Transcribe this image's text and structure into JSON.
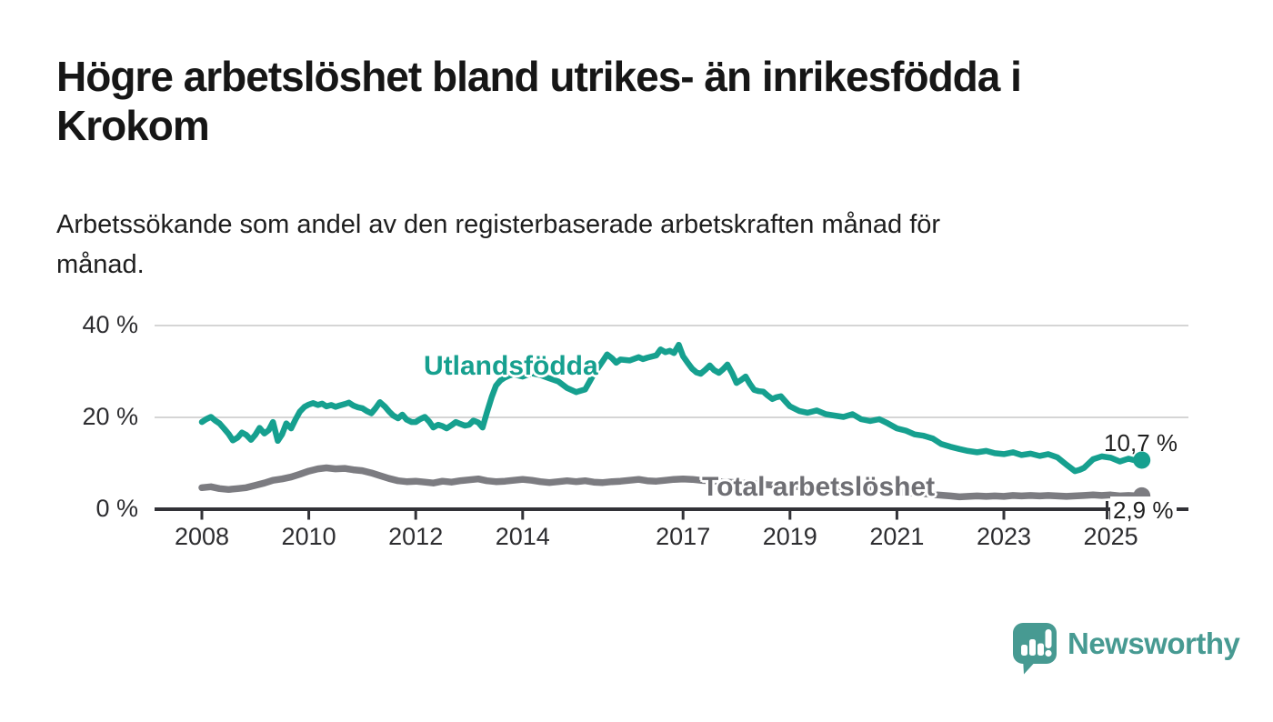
{
  "header": {
    "title": "Högre arbetslöshet bland utrikes- än inrikesfödda i\nKrokom",
    "subtitle": "Arbetssökande som andel av den registerbaserade arbetskraften månad för\nmånad."
  },
  "footer": {
    "brand": "Newsworthy",
    "logo_icon": "speech-bubble-bar-chart-icon",
    "brand_color": "#479a92"
  },
  "colors": {
    "background": "#ffffff",
    "title_text": "#161616",
    "axis": "#323237",
    "gridline": "#d5d5d5",
    "tick_label": "#2d2d30",
    "teal_series": "#16a08f",
    "gray_series": "#7c7c81",
    "gray_label": "#6f6f74"
  },
  "chart_data": {
    "type": "line",
    "title": "Högre arbetslöshet bland utrikes- än inrikesfödda i Krokom",
    "subtitle": "Arbetssökande som andel av den registerbaserade arbetskraften månad för månad.",
    "unit": "%",
    "grid": "horizontal",
    "legend_position": "inline-labels",
    "x_range": [
      2008,
      2025.58
    ],
    "ylim": [
      0,
      43
    ],
    "x_ticks": [
      2008,
      2010,
      2012,
      2014,
      2017,
      2019,
      2021,
      2023,
      2025
    ],
    "x_tick_labels": [
      "2008",
      "2010",
      "2012",
      "2014",
      "2017",
      "2019",
      "2021",
      "2023",
      "2025"
    ],
    "y_ticks": [
      0,
      20,
      40
    ],
    "y_tick_labels": [
      "0 %",
      "20 %",
      "40 %"
    ],
    "series": [
      {
        "name": "Utlandsfödda",
        "color": "#16a08f",
        "label_color": "#16a08f",
        "end_label": "10,7 %",
        "end_value": 10.7,
        "end_dot": true,
        "points": [
          [
            2008.0,
            19.0
          ],
          [
            2008.08,
            19.6
          ],
          [
            2008.17,
            20.1
          ],
          [
            2008.25,
            19.3
          ],
          [
            2008.33,
            18.7
          ],
          [
            2008.42,
            17.5
          ],
          [
            2008.5,
            16.4
          ],
          [
            2008.58,
            15.0
          ],
          [
            2008.67,
            15.6
          ],
          [
            2008.75,
            16.7
          ],
          [
            2008.83,
            16.2
          ],
          [
            2008.92,
            15.1
          ],
          [
            2009.0,
            16.2
          ],
          [
            2009.08,
            17.7
          ],
          [
            2009.17,
            16.5
          ],
          [
            2009.25,
            17.2
          ],
          [
            2009.33,
            19.0
          ],
          [
            2009.42,
            14.9
          ],
          [
            2009.5,
            16.3
          ],
          [
            2009.58,
            18.7
          ],
          [
            2009.67,
            17.6
          ],
          [
            2009.75,
            19.5
          ],
          [
            2009.83,
            21.2
          ],
          [
            2009.92,
            22.3
          ],
          [
            2010.0,
            22.8
          ],
          [
            2010.08,
            23.1
          ],
          [
            2010.17,
            22.7
          ],
          [
            2010.25,
            23.0
          ],
          [
            2010.33,
            22.4
          ],
          [
            2010.42,
            22.7
          ],
          [
            2010.5,
            22.3
          ],
          [
            2010.58,
            22.6
          ],
          [
            2010.67,
            22.9
          ],
          [
            2010.75,
            23.2
          ],
          [
            2010.83,
            22.6
          ],
          [
            2010.92,
            22.2
          ],
          [
            2011.0,
            22.0
          ],
          [
            2011.08,
            21.4
          ],
          [
            2011.17,
            20.9
          ],
          [
            2011.25,
            22.0
          ],
          [
            2011.33,
            23.3
          ],
          [
            2011.42,
            22.4
          ],
          [
            2011.5,
            21.3
          ],
          [
            2011.58,
            20.4
          ],
          [
            2011.67,
            19.8
          ],
          [
            2011.75,
            20.6
          ],
          [
            2011.83,
            19.5
          ],
          [
            2011.92,
            19.0
          ],
          [
            2012.0,
            19.0
          ],
          [
            2012.08,
            19.6
          ],
          [
            2012.17,
            20.1
          ],
          [
            2012.25,
            19.1
          ],
          [
            2012.33,
            17.8
          ],
          [
            2012.42,
            18.4
          ],
          [
            2012.5,
            18.1
          ],
          [
            2012.58,
            17.6
          ],
          [
            2012.67,
            18.3
          ],
          [
            2012.75,
            19.0
          ],
          [
            2012.83,
            18.6
          ],
          [
            2012.92,
            18.2
          ],
          [
            2013.0,
            18.4
          ],
          [
            2013.08,
            19.3
          ],
          [
            2013.17,
            18.9
          ],
          [
            2013.25,
            17.8
          ],
          [
            2013.33,
            21.0
          ],
          [
            2013.42,
            24.4
          ],
          [
            2013.5,
            26.9
          ],
          [
            2013.58,
            28.0
          ],
          [
            2013.67,
            28.7
          ],
          [
            2013.75,
            29.1
          ],
          [
            2013.83,
            29.4
          ],
          [
            2013.92,
            29.1
          ],
          [
            2014.0,
            28.9
          ],
          [
            2014.17,
            29.6
          ],
          [
            2014.33,
            29.2
          ],
          [
            2014.5,
            28.5
          ],
          [
            2014.67,
            27.8
          ],
          [
            2014.83,
            26.4
          ],
          [
            2015.0,
            25.5
          ],
          [
            2015.17,
            26.1
          ],
          [
            2015.33,
            29.4
          ],
          [
            2015.5,
            32.3
          ],
          [
            2015.58,
            33.7
          ],
          [
            2015.67,
            32.9
          ],
          [
            2015.75,
            31.9
          ],
          [
            2015.83,
            32.6
          ],
          [
            2016.0,
            32.4
          ],
          [
            2016.17,
            33.1
          ],
          [
            2016.25,
            32.7
          ],
          [
            2016.33,
            33.0
          ],
          [
            2016.5,
            33.5
          ],
          [
            2016.58,
            34.8
          ],
          [
            2016.67,
            34.2
          ],
          [
            2016.75,
            34.5
          ],
          [
            2016.83,
            34.0
          ],
          [
            2016.92,
            35.8
          ],
          [
            2017.0,
            33.3
          ],
          [
            2017.08,
            32.0
          ],
          [
            2017.17,
            30.6
          ],
          [
            2017.25,
            29.8
          ],
          [
            2017.33,
            29.5
          ],
          [
            2017.42,
            30.4
          ],
          [
            2017.5,
            31.3
          ],
          [
            2017.58,
            30.3
          ],
          [
            2017.67,
            29.7
          ],
          [
            2017.75,
            30.5
          ],
          [
            2017.83,
            31.5
          ],
          [
            2017.92,
            29.6
          ],
          [
            2018.0,
            27.5
          ],
          [
            2018.08,
            28.1
          ],
          [
            2018.17,
            28.9
          ],
          [
            2018.25,
            27.3
          ],
          [
            2018.33,
            26.0
          ],
          [
            2018.42,
            25.7
          ],
          [
            2018.5,
            25.6
          ],
          [
            2018.58,
            24.8
          ],
          [
            2018.67,
            24.0
          ],
          [
            2018.75,
            24.4
          ],
          [
            2018.83,
            24.6
          ],
          [
            2018.92,
            23.4
          ],
          [
            2019.0,
            22.4
          ],
          [
            2019.17,
            21.4
          ],
          [
            2019.33,
            21.0
          ],
          [
            2019.5,
            21.5
          ],
          [
            2019.67,
            20.7
          ],
          [
            2019.83,
            20.4
          ],
          [
            2020.0,
            20.1
          ],
          [
            2020.17,
            20.7
          ],
          [
            2020.33,
            19.6
          ],
          [
            2020.5,
            19.2
          ],
          [
            2020.67,
            19.6
          ],
          [
            2020.83,
            18.7
          ],
          [
            2021.0,
            17.6
          ],
          [
            2021.17,
            17.1
          ],
          [
            2021.33,
            16.3
          ],
          [
            2021.5,
            16.0
          ],
          [
            2021.67,
            15.4
          ],
          [
            2021.83,
            14.2
          ],
          [
            2022.0,
            13.6
          ],
          [
            2022.17,
            13.1
          ],
          [
            2022.33,
            12.7
          ],
          [
            2022.5,
            12.4
          ],
          [
            2022.67,
            12.7
          ],
          [
            2022.83,
            12.2
          ],
          [
            2023.0,
            12.0
          ],
          [
            2023.17,
            12.4
          ],
          [
            2023.33,
            11.8
          ],
          [
            2023.5,
            12.1
          ],
          [
            2023.67,
            11.6
          ],
          [
            2023.83,
            12.0
          ],
          [
            2024.0,
            11.3
          ],
          [
            2024.17,
            9.7
          ],
          [
            2024.33,
            8.3
          ],
          [
            2024.42,
            8.6
          ],
          [
            2024.5,
            9.0
          ],
          [
            2024.67,
            10.9
          ],
          [
            2024.83,
            11.5
          ],
          [
            2025.0,
            11.2
          ],
          [
            2025.17,
            10.4
          ],
          [
            2025.33,
            11.0
          ],
          [
            2025.5,
            10.5
          ],
          [
            2025.58,
            10.7
          ]
        ]
      },
      {
        "name": "Total arbetslöshet",
        "color": "#7c7c81",
        "label_color": "#6f6f74",
        "end_label": "2,9 %",
        "end_value": 2.9,
        "end_dot": true,
        "points": [
          [
            2008.0,
            4.7
          ],
          [
            2008.17,
            4.9
          ],
          [
            2008.33,
            4.5
          ],
          [
            2008.5,
            4.3
          ],
          [
            2008.67,
            4.5
          ],
          [
            2008.83,
            4.7
          ],
          [
            2009.0,
            5.2
          ],
          [
            2009.17,
            5.7
          ],
          [
            2009.33,
            6.3
          ],
          [
            2009.5,
            6.6
          ],
          [
            2009.67,
            7.0
          ],
          [
            2009.83,
            7.6
          ],
          [
            2010.0,
            8.3
          ],
          [
            2010.17,
            8.8
          ],
          [
            2010.33,
            9.0
          ],
          [
            2010.5,
            8.8
          ],
          [
            2010.67,
            8.9
          ],
          [
            2010.83,
            8.6
          ],
          [
            2011.0,
            8.4
          ],
          [
            2011.17,
            7.9
          ],
          [
            2011.33,
            7.3
          ],
          [
            2011.5,
            6.7
          ],
          [
            2011.67,
            6.2
          ],
          [
            2011.83,
            6.0
          ],
          [
            2012.0,
            6.1
          ],
          [
            2012.17,
            5.9
          ],
          [
            2012.33,
            5.7
          ],
          [
            2012.5,
            6.1
          ],
          [
            2012.67,
            5.9
          ],
          [
            2012.83,
            6.2
          ],
          [
            2013.0,
            6.4
          ],
          [
            2013.17,
            6.6
          ],
          [
            2013.33,
            6.2
          ],
          [
            2013.5,
            6.0
          ],
          [
            2013.67,
            6.1
          ],
          [
            2013.83,
            6.3
          ],
          [
            2014.0,
            6.5
          ],
          [
            2014.17,
            6.3
          ],
          [
            2014.33,
            6.0
          ],
          [
            2014.5,
            5.8
          ],
          [
            2014.67,
            6.0
          ],
          [
            2014.83,
            6.2
          ],
          [
            2015.0,
            6.0
          ],
          [
            2015.17,
            6.2
          ],
          [
            2015.33,
            5.9
          ],
          [
            2015.5,
            5.8
          ],
          [
            2015.67,
            6.0
          ],
          [
            2015.83,
            6.1
          ],
          [
            2016.0,
            6.3
          ],
          [
            2016.17,
            6.5
          ],
          [
            2016.33,
            6.2
          ],
          [
            2016.5,
            6.1
          ],
          [
            2016.67,
            6.3
          ],
          [
            2016.83,
            6.5
          ],
          [
            2017.0,
            6.6
          ],
          [
            2017.17,
            6.5
          ],
          [
            2017.33,
            6.3
          ],
          [
            2017.5,
            6.2
          ],
          [
            2017.67,
            6.0
          ],
          [
            2017.83,
            5.9
          ],
          [
            2018.0,
            5.8
          ],
          [
            2018.25,
            5.6
          ],
          [
            2018.5,
            5.4
          ],
          [
            2018.75,
            5.2
          ],
          [
            2019.0,
            5.0
          ],
          [
            2019.25,
            4.8
          ],
          [
            2019.5,
            4.7
          ],
          [
            2019.75,
            4.5
          ],
          [
            2020.0,
            4.4
          ],
          [
            2020.25,
            4.3
          ],
          [
            2020.5,
            4.2
          ],
          [
            2020.75,
            4.0
          ],
          [
            2021.0,
            3.8
          ],
          [
            2021.25,
            3.6
          ],
          [
            2021.5,
            3.4
          ],
          [
            2021.75,
            3.1
          ],
          [
            2022.0,
            2.9
          ],
          [
            2022.17,
            2.7
          ],
          [
            2022.33,
            2.8
          ],
          [
            2022.5,
            2.9
          ],
          [
            2022.67,
            2.8
          ],
          [
            2022.83,
            2.9
          ],
          [
            2023.0,
            2.8
          ],
          [
            2023.17,
            3.0
          ],
          [
            2023.33,
            2.9
          ],
          [
            2023.5,
            3.0
          ],
          [
            2023.67,
            2.9
          ],
          [
            2023.83,
            3.0
          ],
          [
            2024.0,
            2.9
          ],
          [
            2024.17,
            2.8
          ],
          [
            2024.33,
            2.9
          ],
          [
            2024.5,
            3.0
          ],
          [
            2024.67,
            3.1
          ],
          [
            2024.83,
            3.0
          ],
          [
            2025.0,
            3.1
          ],
          [
            2025.17,
            2.9
          ],
          [
            2025.33,
            3.0
          ],
          [
            2025.5,
            2.9
          ],
          [
            2025.58,
            2.9
          ]
        ]
      }
    ]
  }
}
